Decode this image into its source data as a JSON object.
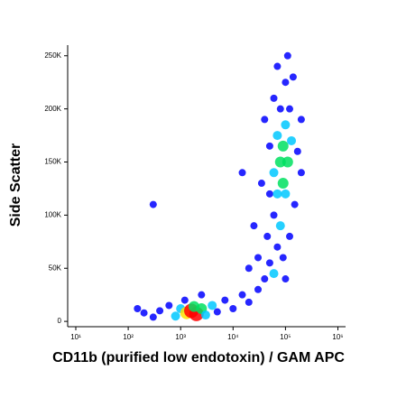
{
  "chart_data": {
    "type": "scatter",
    "xlabel": "CD11b (purified low endotoxin) / GAM APC",
    "ylabel": "Side Scatter",
    "xscale": "log",
    "xlim": [
      7,
      1400000
    ],
    "ylim": [
      -5000,
      260000
    ],
    "xticks": [
      {
        "value": 10,
        "label": "10¹"
      },
      {
        "value": 100,
        "label": "10²"
      },
      {
        "value": 1000,
        "label": "10³"
      },
      {
        "value": 10000,
        "label": "10⁴"
      },
      {
        "value": 100000,
        "label": "10⁵"
      },
      {
        "value": 1000000,
        "label": "10⁶"
      }
    ],
    "yticks": [
      0,
      {
        "value": 50000,
        "label": "50K"
      },
      {
        "value": 100000,
        "label": "100K"
      },
      {
        "value": 150000,
        "label": "150K"
      },
      {
        "value": 200000,
        "label": "200K"
      },
      {
        "value": 250000,
        "label": "250K"
      }
    ],
    "density_colors": [
      "#0000ff",
      "#00c8ff",
      "#00e060",
      "#ffe000",
      "#ff0000"
    ],
    "series": [
      {
        "x": [
          200,
          400,
          600,
          800,
          1000,
          1300,
          1600,
          2000,
          1800,
          2500,
          3000,
          4000,
          5000,
          7000,
          10000,
          15000,
          1200,
          2500,
          300,
          150,
          20000,
          30000,
          40000,
          50000,
          60000,
          30000,
          70000,
          45000,
          90000,
          100000,
          60000,
          25000,
          80000,
          120000,
          50000,
          150000,
          70000,
          100000,
          35000,
          200000,
          60000,
          80000,
          110000,
          90000,
          70000,
          130000,
          100000,
          50000,
          170000,
          80000,
          120000,
          60000,
          100000,
          140000,
          70000,
          110000,
          40000,
          200000,
          90000,
          20000,
          15000,
          300
        ],
        "y": [
          8000,
          10000,
          15000,
          5000,
          12000,
          8000,
          10000,
          7000,
          14000,
          12000,
          6000,
          15000,
          9000,
          20000,
          12000,
          25000,
          20000,
          25000,
          4000,
          12000,
          18000,
          30000,
          40000,
          55000,
          45000,
          60000,
          70000,
          80000,
          60000,
          40000,
          100000,
          90000,
          90000,
          80000,
          120000,
          110000,
          120000,
          120000,
          130000,
          140000,
          140000,
          150000,
          150000,
          165000,
          175000,
          170000,
          185000,
          165000,
          160000,
          200000,
          200000,
          210000,
          225000,
          230000,
          240000,
          250000,
          190000,
          190000,
          130000,
          50000,
          140000,
          110000
        ],
        "density": [
          1,
          1,
          1,
          2,
          2,
          4,
          5,
          5,
          3,
          3,
          2,
          2,
          1,
          1,
          1,
          1,
          1,
          1,
          1,
          1,
          1,
          1,
          1,
          1,
          2,
          1,
          1,
          1,
          1,
          1,
          1,
          1,
          2,
          1,
          1,
          1,
          2,
          2,
          1,
          1,
          2,
          3,
          3,
          3,
          2,
          2,
          2,
          1,
          1,
          1,
          1,
          1,
          1,
          1,
          1,
          1,
          1,
          1,
          3,
          1,
          1,
          1
        ]
      }
    ]
  }
}
